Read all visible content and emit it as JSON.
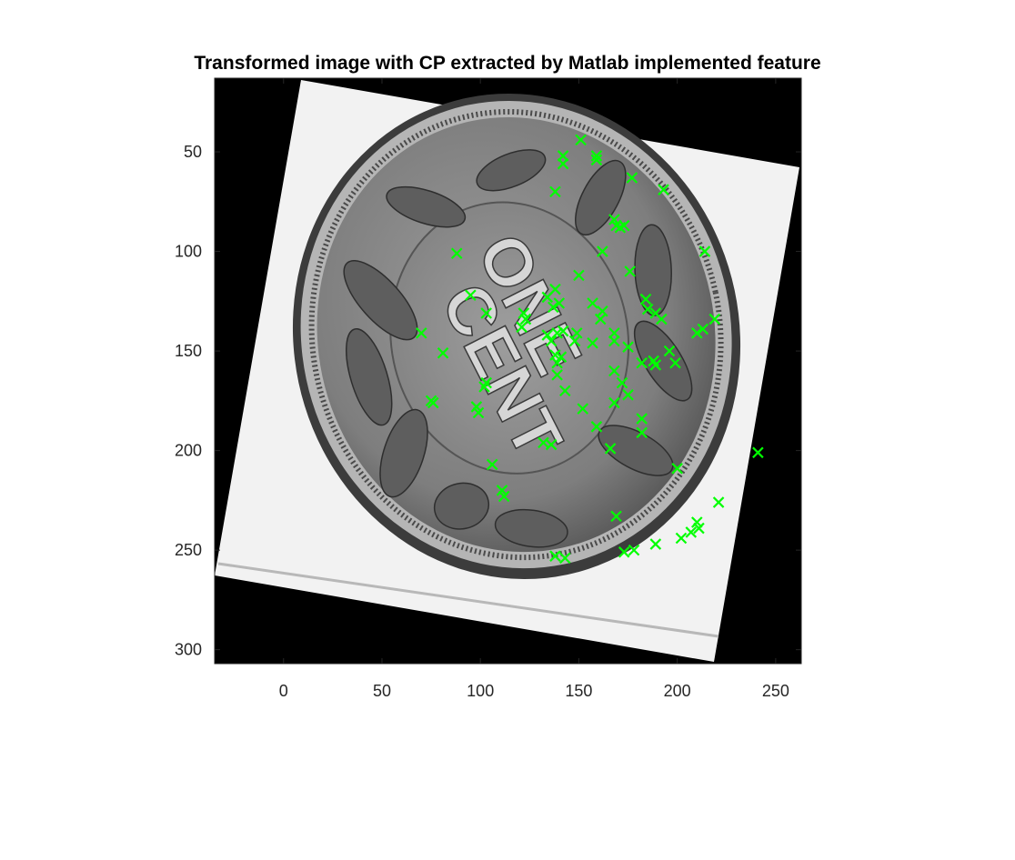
{
  "chart_data": {
    "type": "scatter",
    "title": "Transformed image with CP extracted by Matlab implemented feature",
    "xlabel": "",
    "ylabel": "",
    "xlim": [
      -35,
      263
    ],
    "ylim": [
      307,
      13
    ],
    "y_reversed": true,
    "x_ticks": [
      0,
      50,
      100,
      150,
      200,
      250
    ],
    "y_ticks": [
      50,
      100,
      150,
      200,
      250,
      300
    ],
    "grid": false,
    "legend": "none",
    "background_image": "rotated grayscale photo of an Indian Head one cent coin reverse (wreath with ONE CENT), white backdrop, black fill outside rotated frame",
    "marker": "x",
    "marker_color": "#00ff00",
    "series": [
      {
        "points": [
          [
            151,
            44
          ],
          [
            142,
            52
          ],
          [
            159,
            52
          ],
          [
            142,
            56
          ],
          [
            159,
            54
          ],
          [
            177,
            63
          ],
          [
            193,
            69
          ],
          [
            138,
            70
          ],
          [
            168,
            84
          ],
          [
            171,
            88
          ],
          [
            173,
            87
          ],
          [
            169,
            87
          ],
          [
            88,
            101
          ],
          [
            162,
            100
          ],
          [
            214,
            100
          ],
          [
            150,
            112
          ],
          [
            176,
            110
          ],
          [
            95,
            122
          ],
          [
            134,
            123
          ],
          [
            138,
            119
          ],
          [
            140,
            126
          ],
          [
            137,
            128
          ],
          [
            157,
            126
          ],
          [
            184,
            124
          ],
          [
            185,
            129
          ],
          [
            103,
            131
          ],
          [
            122,
            131
          ],
          [
            123,
            134
          ],
          [
            162,
            130
          ],
          [
            161,
            134
          ],
          [
            189,
            131
          ],
          [
            192,
            134
          ],
          [
            219,
            134
          ],
          [
            121,
            138
          ],
          [
            210,
            141
          ],
          [
            213,
            139
          ],
          [
            70,
            141
          ],
          [
            134,
            142
          ],
          [
            136,
            145
          ],
          [
            139,
            141
          ],
          [
            142,
            140
          ],
          [
            149,
            141
          ],
          [
            148,
            145
          ],
          [
            157,
            146
          ],
          [
            168,
            141
          ],
          [
            168,
            145
          ],
          [
            175,
            148
          ],
          [
            81,
            151
          ],
          [
            138,
            152
          ],
          [
            141,
            153
          ],
          [
            139,
            156
          ],
          [
            196,
            150
          ],
          [
            182,
            156
          ],
          [
            188,
            155
          ],
          [
            189,
            157
          ],
          [
            199,
            156
          ],
          [
            168,
            160
          ],
          [
            139,
            162
          ],
          [
            172,
            166
          ],
          [
            103,
            166
          ],
          [
            102,
            168
          ],
          [
            143,
            170
          ],
          [
            175,
            172
          ],
          [
            75,
            175
          ],
          [
            76,
            176
          ],
          [
            168,
            176
          ],
          [
            98,
            178
          ],
          [
            99,
            181
          ],
          [
            152,
            179
          ],
          [
            182,
            184
          ],
          [
            182,
            191
          ],
          [
            159,
            188
          ],
          [
            132,
            196
          ],
          [
            136,
            197
          ],
          [
            166,
            199
          ],
          [
            241,
            201
          ],
          [
            106,
            207
          ],
          [
            200,
            209
          ],
          [
            111,
            220
          ],
          [
            112,
            223
          ],
          [
            221,
            226
          ],
          [
            169,
            233
          ],
          [
            210,
            236
          ],
          [
            211,
            239
          ],
          [
            207,
            241
          ],
          [
            202,
            244
          ],
          [
            189,
            247
          ],
          [
            178,
            250
          ],
          [
            173,
            251
          ],
          [
            138,
            253
          ],
          [
            143,
            254
          ]
        ]
      }
    ]
  }
}
